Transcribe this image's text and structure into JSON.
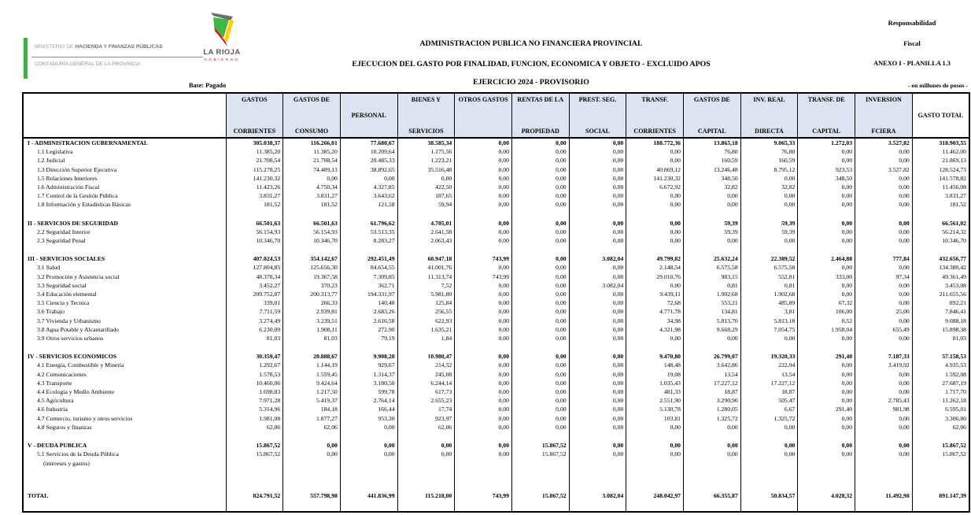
{
  "header": {
    "ministry_line1_light": "MINISTERIO DE",
    "ministry_line1_bold": "HACIENDA Y FINANZAS PÚBLICAS",
    "ministry_line2": "CONTADURÍA GENERAL DE LA PROVINCIA",
    "logo_title": "LA RIOJA",
    "logo_subtitle": "GOBIERNO",
    "logo_colors": {
      "green": "#43b649",
      "yellow": "#ffd200",
      "red": "#e30613",
      "gray": "#6d6e71"
    },
    "title1": "ADMINISTRACION PUBLICA NO  FINANCIERA PROVINCIAL",
    "title2": "EJECUCION DEL GASTO POR  FINALIDAD, FUNCION,  ECONOMICA Y OBJETO  -  EXCLUIDO  APOS",
    "title3": "EJERCICIO 2024 - PROVISORIO",
    "right_line1": "Responsabilidad",
    "right_line2": "Fiscal",
    "right_line3": "ANEXO I - PLANILLA 1.3",
    "base_label": "Base: Pagado",
    "unit_label": "- en millones de pesos -"
  },
  "table": {
    "header_bg": "#dce4f2",
    "columns": [
      {
        "top": "GASTOS",
        "bottom": "CORRIENTES"
      },
      {
        "top": "GASTOS DE",
        "bottom": "CONSUMO"
      },
      {
        "middle": "PERSONAL"
      },
      {
        "top": "BIENES Y",
        "bottom": "SERVICIOS"
      },
      {
        "top": "OTROS GASTOS",
        "bottom": ""
      },
      {
        "top": "RENTAS DE LA",
        "bottom": "PROPIEDAD"
      },
      {
        "top": "PREST. SEG.",
        "bottom": "SOCIAL"
      },
      {
        "top": "TRANSF.",
        "bottom": "CORRIENTES"
      },
      {
        "top": "GASTOS DE",
        "bottom": "CAPITAL"
      },
      {
        "top": "INV. REAL",
        "bottom": "DIRECTA"
      },
      {
        "top": "TRANSF. DE",
        "bottom": "CAPITAL"
      },
      {
        "top": "INVERSION",
        "bottom": "FCIERA"
      },
      {
        "middle": "GASTO TOTAL",
        "white": true
      }
    ],
    "rows": [
      {
        "type": "section",
        "label": "I -  ADMINISTRACION GUBERNAMENTAL",
        "values": [
          "305.038,37",
          "116.266,01",
          "77.680,67",
          "38.585,34",
          "0,00",
          "0,00",
          "0,00",
          "188.772,36",
          "13.865,18",
          "9.065,33",
          "1.272,03",
          "3.527,82",
          "318.903,55"
        ]
      },
      {
        "type": "item",
        "label": "1.1 Legislativa",
        "values": [
          "11.385,20",
          "11.385,20",
          "10.209,64",
          "1.175,56",
          "0,00",
          "0,00",
          "0,00",
          "0,00",
          "76,80",
          "76,80",
          "0,00",
          "0,00",
          "11.462,00"
        ]
      },
      {
        "type": "item",
        "label": "1.2 Judicial",
        "values": [
          "21.708,54",
          "21.708,54",
          "20.485,33",
          "1.223,21",
          "0,00",
          "0,00",
          "0,00",
          "0,00",
          "160,59",
          "160,59",
          "0,00",
          "0,00",
          "21.869,13"
        ]
      },
      {
        "type": "item",
        "label": "1.3 Dirección Superior Ejecutiva",
        "values": [
          "115.278,25",
          "74.409,13",
          "38.892,65",
          "35.516,48",
          "0,00",
          "0,00",
          "0,00",
          "40.869,12",
          "13.246,48",
          "8.795,12",
          "923,53",
          "3.527,82",
          "128.524,73"
        ]
      },
      {
        "type": "item",
        "label": "1.5 Relaciones Interiores",
        "values": [
          "141.230,32",
          "0,00",
          "0,00",
          "0,00",
          "0,00",
          "0,00",
          "0,00",
          "141.230,32",
          "348,50",
          "0,00",
          "348,50",
          "0,00",
          "141.578,82"
        ]
      },
      {
        "type": "item",
        "label": "1.6 Administración Fiscal",
        "values": [
          "11.423,26",
          "4.750,34",
          "4.327,85",
          "422,50",
          "0,00",
          "0,00",
          "0,00",
          "6.672,92",
          "32,82",
          "32,82",
          "0,00",
          "0,00",
          "11.456,08"
        ]
      },
      {
        "type": "item",
        "label": "1.7 Control de la Gestión  Pública",
        "values": [
          "3.831,27",
          "3.831,27",
          "3.643,62",
          "187,65",
          "0,00",
          "0,00",
          "0,00",
          "0,00",
          "0,00",
          "0,00",
          "0,00",
          "0,00",
          "3.831,27"
        ]
      },
      {
        "type": "item",
        "label": "1.8 Información y Estadísticas Básicas",
        "values": [
          "181,52",
          "181,52",
          "121,58",
          "59,94",
          "0,00",
          "0,00",
          "0,00",
          "0,00",
          "0,00",
          "0,00",
          "0,00",
          "0,00",
          "181,52"
        ]
      },
      {
        "type": "spacer",
        "h": 12
      },
      {
        "type": "section",
        "label": "II - SERVICIOS DE SEGURIDAD",
        "values": [
          "66.501,63",
          "66.501,63",
          "61.796,62",
          "4.705,01",
          "0,00",
          "0,00",
          "0,00",
          "0,00",
          "59,39",
          "59,39",
          "0,00",
          "0,00",
          "66.561,02"
        ]
      },
      {
        "type": "item",
        "label": "2.2  Seguridad Interior",
        "values": [
          "56.154,93",
          "56.154,93",
          "53.513,35",
          "2.641,58",
          "0,00",
          "0,00",
          "0,00",
          "0,00",
          "59,39",
          "59,39",
          "0,00",
          "0,00",
          "56.214,32"
        ]
      },
      {
        "type": "item",
        "label": "2.3  Seguridad Penal",
        "values": [
          "10.346,70",
          "10.346,70",
          "8.283,27",
          "2.063,43",
          "0,00",
          "0,00",
          "0,00",
          "0,00",
          "0,00",
          "0,00",
          "0,00",
          "0,00",
          "10.346,70"
        ]
      },
      {
        "type": "spacer",
        "h": 12
      },
      {
        "type": "section",
        "label": "III - SERVICIOS SOCIALES",
        "values": [
          "407.024,53",
          "354.142,67",
          "292.451,49",
          "60.947,18",
          "743,99",
          "0,00",
          "3.082,04",
          "49.799,82",
          "25.632,24",
          "22.389,52",
          "2.464,88",
          "777,84",
          "432.656,77"
        ]
      },
      {
        "type": "item",
        "label": "3.1 Salud",
        "values": [
          "127.804,85",
          "125.656,30",
          "84.654,55",
          "41.001,76",
          "0,00",
          "0,00",
          "0,00",
          "2.148,54",
          "6.575,58",
          "6.575,58",
          "0,00",
          "0,00",
          "134.380,42"
        ]
      },
      {
        "type": "item",
        "label": "3.2 Promoción y Asistencia social",
        "values": [
          "48.378,34",
          "19.367,58",
          "7.309,85",
          "11.313,74",
          "743,99",
          "0,00",
          "0,00",
          "29.010,76",
          "983,15",
          "552,81",
          "333,00",
          "97,34",
          "49.361,49"
        ]
      },
      {
        "type": "item",
        "label": "3.3 Seguridad social",
        "values": [
          "3.452,27",
          "370,23",
          "362,71",
          "7,52",
          "0,00",
          "0,00",
          "3.082,04",
          "0,00",
          "0,81",
          "0,81",
          "0,00",
          "0,00",
          "3.453,08"
        ]
      },
      {
        "type": "item",
        "label": "3.4 Educación elemental",
        "values": [
          "209.752,87",
          "200.313,77",
          "194.331,97",
          "5.981,80",
          "0,00",
          "0,00",
          "0,00",
          "9.439,11",
          "1.902,68",
          "1.902,68",
          "0,00",
          "0,00",
          "211.655,56"
        ]
      },
      {
        "type": "item",
        "label": "3.5 Ciencia y Tecnica",
        "values": [
          "339,01",
          "266,33",
          "140,48",
          "125,84",
          "0,00",
          "0,00",
          "0,00",
          "72,68",
          "553,21",
          "485,89",
          "67,32",
          "0,00",
          "892,21"
        ]
      },
      {
        "type": "item",
        "label": "3.6 Trabajo",
        "values": [
          "7.711,59",
          "2.939,81",
          "2.683,26",
          "256,55",
          "0,00",
          "0,00",
          "0,00",
          "4.771,78",
          "134,81",
          "3,81",
          "106,00",
          "25,00",
          "7.846,41"
        ]
      },
      {
        "type": "item",
        "label": "3.7 Vivienda y Urbanismo",
        "values": [
          "3.274,49",
          "3.239,51",
          "2.616,58",
          "622,93",
          "0,00",
          "0,00",
          "0,00",
          "34,98",
          "5.813,70",
          "5.813,18",
          "0,52",
          "0,00",
          "9.088,18"
        ]
      },
      {
        "type": "item",
        "label": "3.8 Agua Potable y Alcantarillado",
        "values": [
          "6.230,09",
          "1.908,11",
          "272,90",
          "1.635,21",
          "0,00",
          "0,00",
          "0,00",
          "4.321,98",
          "9.668,29",
          "7.054,75",
          "1.958,04",
          "655,49",
          "15.898,38"
        ]
      },
      {
        "type": "item",
        "label": "3.9 Otros servicios urbanos",
        "values": [
          "81,03",
          "81,03",
          "79,19",
          "1,84",
          "0,00",
          "0,00",
          "0,00",
          "0,00",
          "0,00",
          "0,00",
          "0,00",
          "0,00",
          "81,03"
        ]
      },
      {
        "type": "spacer",
        "h": 12
      },
      {
        "type": "section",
        "label": "IV - SERVICIOS ECONOMICOS",
        "values": [
          "30.359,47",
          "20.888,67",
          "9.908,20",
          "10.980,47",
          "0,00",
          "0,00",
          "0,00",
          "9.470,80",
          "26.799,07",
          "19.320,33",
          "291,40",
          "7.187,33",
          "57.158,53"
        ]
      },
      {
        "type": "item",
        "label": "4.1 Energía, Combustible y Minería",
        "values": [
          "1.292,67",
          "1.144,19",
          "929,67",
          "214,52",
          "0,00",
          "0,00",
          "0,00",
          "148,48",
          "3.642,86",
          "222,94",
          "0,00",
          "3.419,92",
          "4.935,53"
        ]
      },
      {
        "type": "item",
        "label": "4.2 Comunicaciones",
        "values": [
          "1.578,53",
          "1.559,45",
          "1.314,37",
          "245,08",
          "0,00",
          "0,00",
          "0,00",
          "19,08",
          "13,54",
          "13,54",
          "0,00",
          "0,00",
          "1.592,08"
        ]
      },
      {
        "type": "item",
        "label": "4.3 Transporte",
        "values": [
          "10.460,06",
          "9.424,64",
          "3.180,50",
          "6.244,14",
          "0,00",
          "0,00",
          "0,00",
          "1.035,43",
          "17.227,12",
          "17.227,12",
          "0,00",
          "0,00",
          "27.687,19"
        ]
      },
      {
        "type": "item",
        "label": "4.4 Ecología y Medio Ambiente",
        "values": [
          "1.698,83",
          "1.217,50",
          "599,78",
          "617,73",
          "0,00",
          "0,00",
          "0,00",
          "481,33",
          "18,87",
          "18,87",
          "0,00",
          "0,00",
          "1.717,70"
        ]
      },
      {
        "type": "item",
        "label": "4.5 Agricultura",
        "values": [
          "7.971,28",
          "5.419,37",
          "2.764,14",
          "2.655,23",
          "0,00",
          "0,00",
          "0,00",
          "2.551,90",
          "3.290,90",
          "505,47",
          "0,00",
          "2.785,43",
          "11.262,18"
        ]
      },
      {
        "type": "item",
        "label": "4.6 Industria",
        "values": [
          "5.314,96",
          "184,18",
          "166,44",
          "17,74",
          "0,00",
          "0,00",
          "0,00",
          "5.130,78",
          "1.280,05",
          "6,67",
          "291,40",
          "981,98",
          "6.595,01"
        ]
      },
      {
        "type": "item",
        "label": "4.7 Comercio, turismo y otros servicios",
        "values": [
          "1.981,08",
          "1.877,27",
          "953,30",
          "923,97",
          "0,00",
          "0,00",
          "0,00",
          "103,81",
          "1.325,72",
          "1.325,72",
          "0,00",
          "0,00",
          "3.306,80"
        ]
      },
      {
        "type": "item",
        "label": "4.8 Seguros y finanzas",
        "values": [
          "62,06",
          "62,06",
          "0,00",
          "62,06",
          "0,00",
          "0,00",
          "0,00",
          "0,00",
          "0,00",
          "0,00",
          "0,00",
          "0,00",
          "62,06"
        ]
      },
      {
        "type": "spacer",
        "h": 12
      },
      {
        "type": "section",
        "label": "V - DEUDA PUBLICA",
        "values": [
          "15.867,52",
          "0,00",
          "0,00",
          "0,00",
          "0,00",
          "15.867,52",
          "0,00",
          "0,00",
          "0,00",
          "0,00",
          "0,00",
          "0,00",
          "15.867,52"
        ]
      },
      {
        "type": "item",
        "label": "5.1 Servicios de la Deuda Pública",
        "values": [
          "15.867,52",
          "0,00",
          "0,00",
          "0,00",
          "0,00",
          "15.867,52",
          "0,00",
          "0,00",
          "0,00",
          "0,00",
          "0,00",
          "0,00",
          "15.867,52"
        ]
      },
      {
        "type": "note",
        "label": "(intereses y gastos)",
        "values": [
          "",
          "",
          "",
          "",
          "",
          "",
          "",
          "",
          "",
          "",
          "",
          "",
          ""
        ]
      },
      {
        "type": "spacer",
        "h": 30
      },
      {
        "type": "total",
        "label": "TOTAL",
        "values": [
          "824.791,52",
          "557.798,98",
          "441.836,99",
          "115.218,00",
          "743,99",
          "15.867,52",
          "3.082,04",
          "248.042,97",
          "66.355,87",
          "50.834,57",
          "4.028,32",
          "11.492,98",
          "891.147,39"
        ]
      },
      {
        "type": "spacer",
        "h": 14
      }
    ]
  }
}
